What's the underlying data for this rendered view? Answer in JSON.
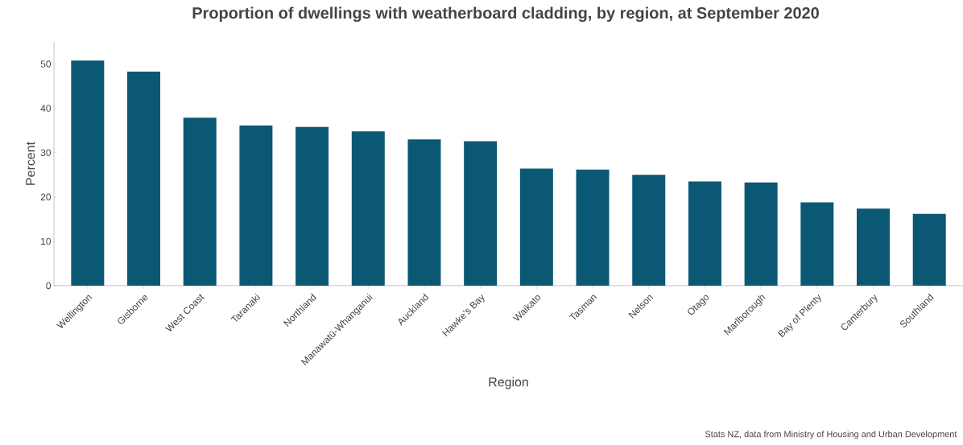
{
  "chart_data": {
    "type": "bar",
    "title": "Proportion of dwellings with weatherboard cladding, by region, at September 2020",
    "xlabel": "Region",
    "ylabel": "Percent",
    "annotations": [
      "Stats NZ, data from Ministry of Housing and Urban Development"
    ],
    "categories": [
      "Wellington",
      "Gisborne",
      "West Coast",
      "Taranaki",
      "Northland",
      "Manawatū-Whanganui",
      "Auckland",
      "Hawke’s Bay",
      "Waikato",
      "Tasman",
      "Nelson",
      "Otago",
      "Marlborough",
      "Bay of Plenty",
      "Canterbury",
      "Southland"
    ],
    "values": [
      50.8,
      48.3,
      37.9,
      36.1,
      35.8,
      34.8,
      33.0,
      32.6,
      26.4,
      26.2,
      25.0,
      23.5,
      23.3,
      18.8,
      17.4,
      16.2
    ],
    "color": "#0b5874",
    "ylim": [
      0,
      55
    ],
    "yticks": [
      0,
      10,
      20,
      30,
      40,
      50
    ],
    "grid": false
  }
}
